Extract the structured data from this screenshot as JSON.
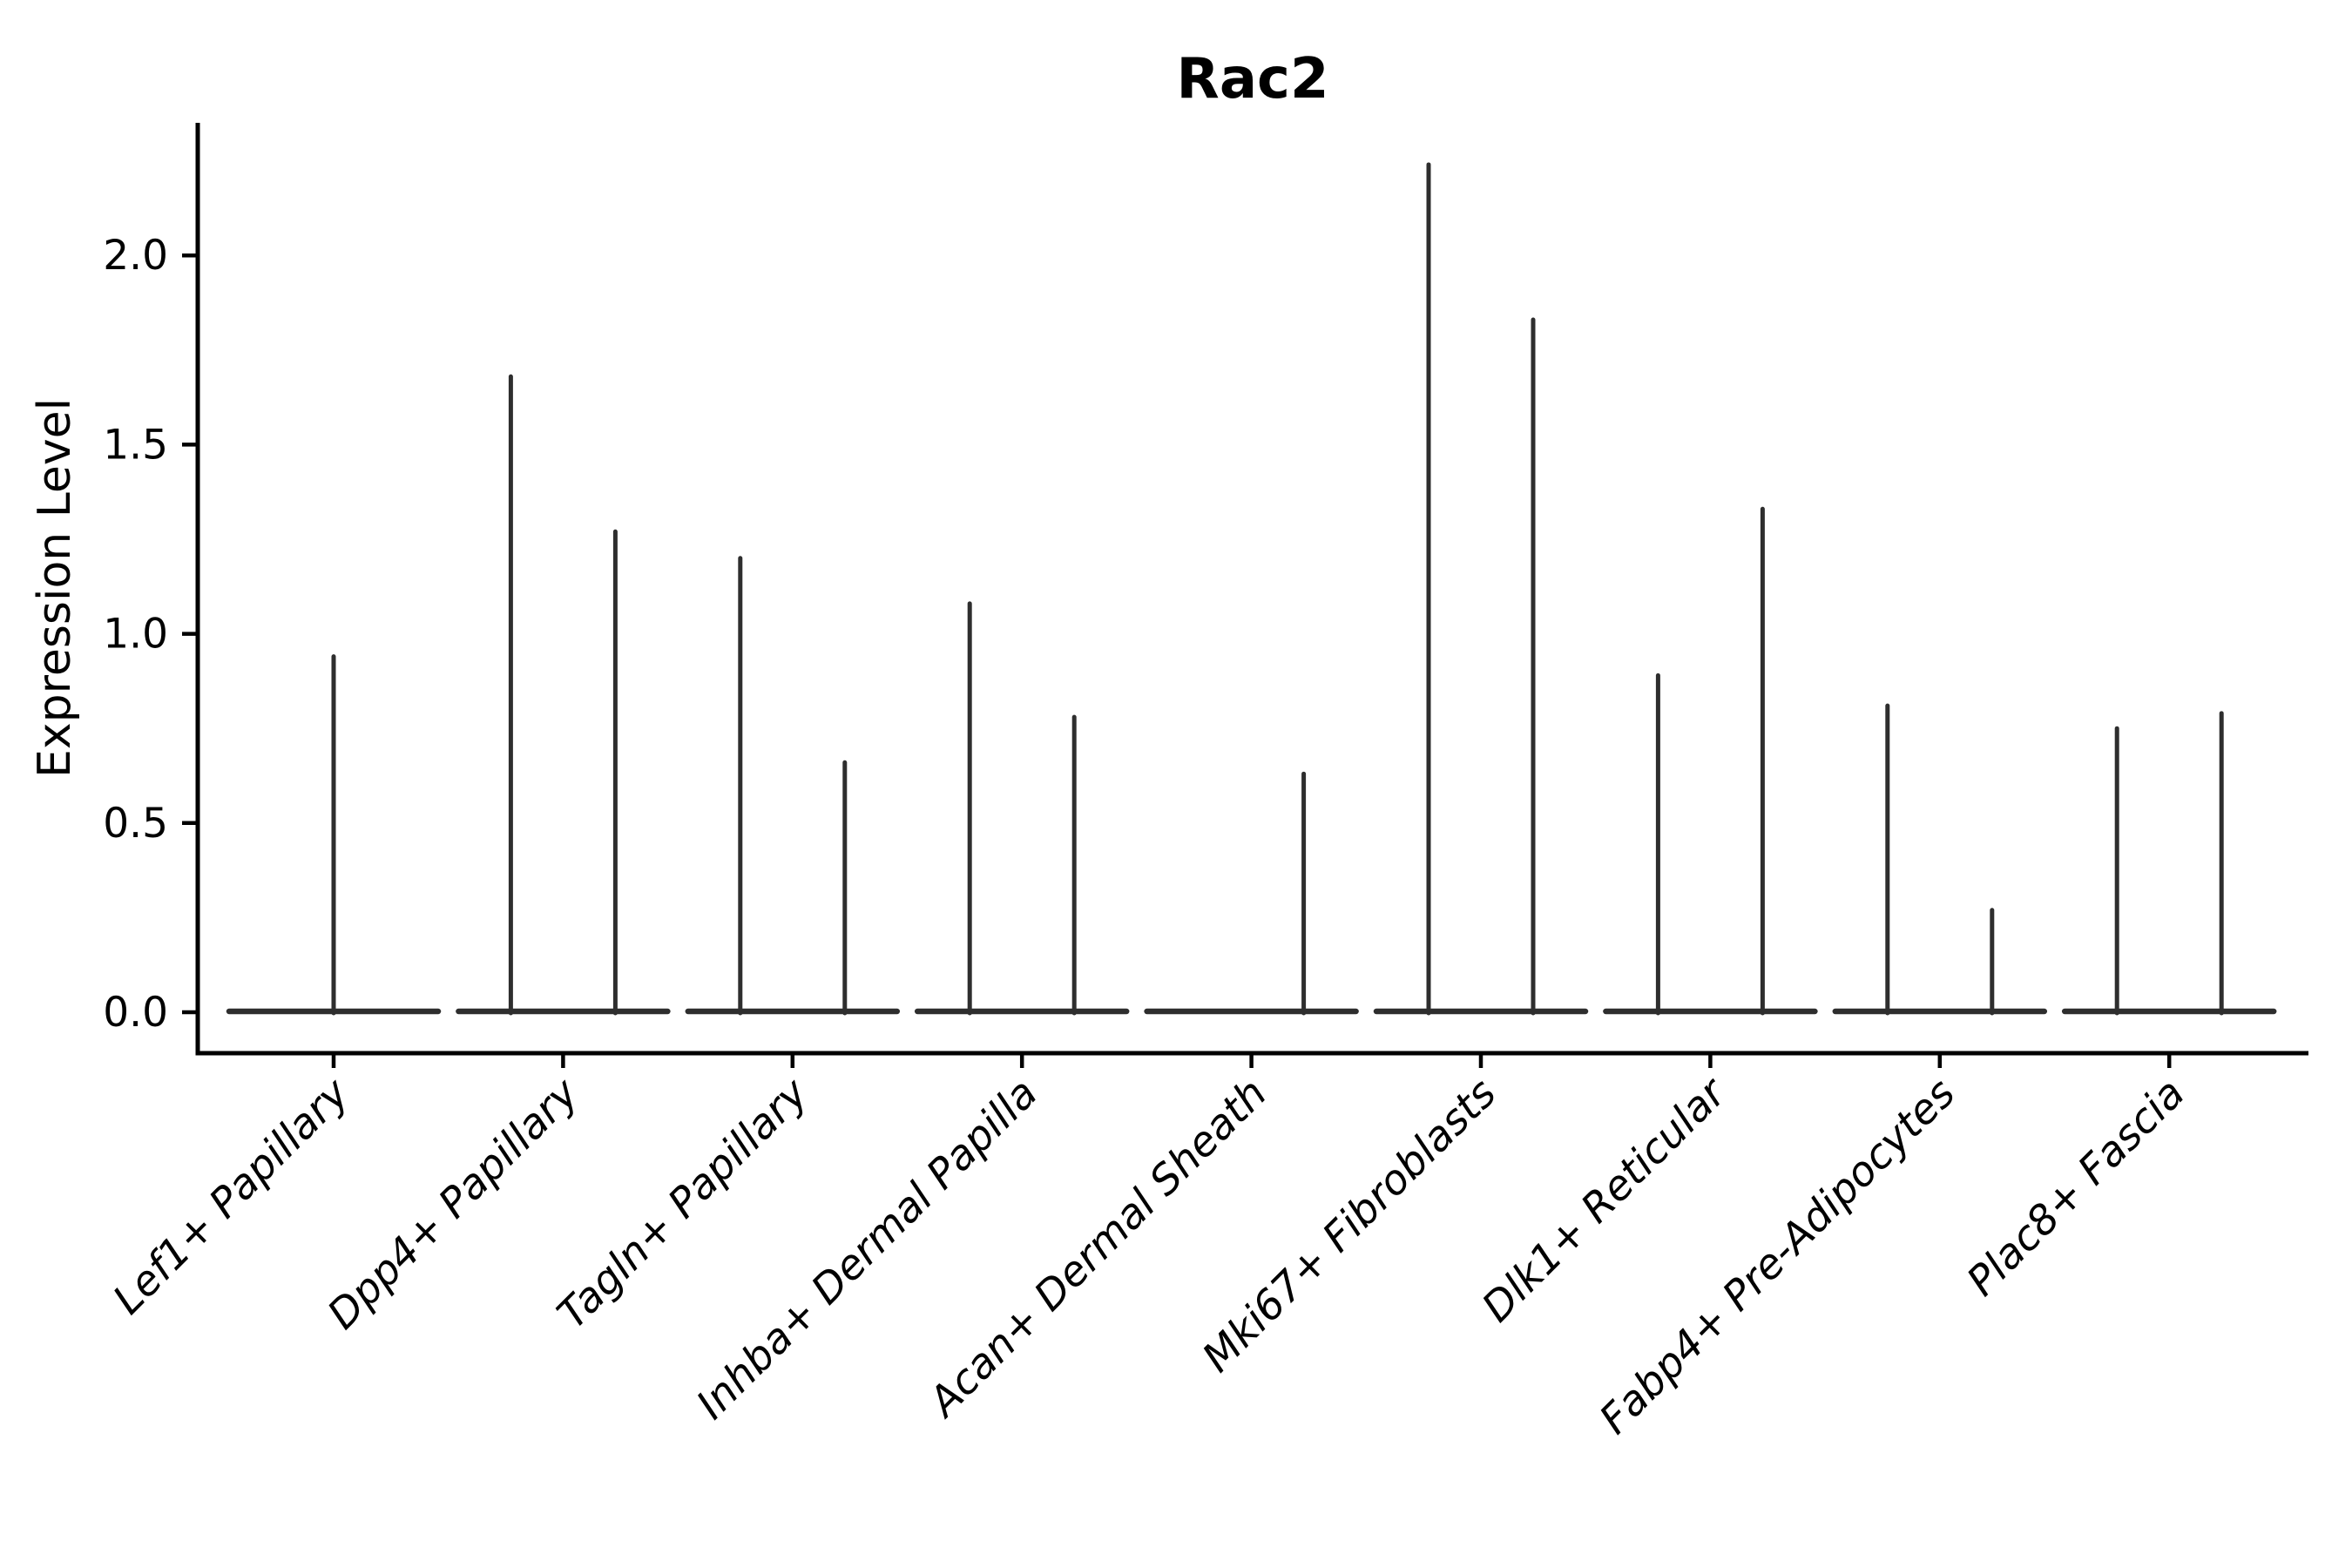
{
  "title": "Rac2",
  "axes": {
    "ylabel": "Expression Level",
    "ytick_labels": [
      "0.0",
      "0.5",
      "1.0",
      "1.5",
      "2.0"
    ]
  },
  "colors": {
    "violin_line": "#2e2e2e",
    "axis_line": "#000000",
    "text": "#000000",
    "background": "#ffffff"
  },
  "chart_data": {
    "type": "violin",
    "title": "Rac2",
    "xlabel": "",
    "ylabel": "Expression Level",
    "ylim": [
      -0.11,
      2.35
    ],
    "yticks": [
      0.0,
      0.5,
      1.0,
      1.5,
      2.0
    ],
    "grid": false,
    "legend": "none",
    "description": "Zero-inflated expression violins: each violin collapses to a horizontal baseline at 0 with a thin vertical spike reaching the maximum expression value. Most categories contain two side-by-side (dodged) violins; spike position 'center' means a single full-width violin, 'left'/'right' are the dodged halves.",
    "categories": [
      "Lef1+ Papillary",
      "Dpp4+ Papillary",
      "Tagln+ Papillary",
      "Inhba+ Dermal Papilla",
      "Acan+ Dermal Sheath",
      "Mki67+ Fibroblasts",
      "Dlk1+ Reticular",
      "Fabp4+ Pre-Adipocytes",
      "Plac8+ Fascia"
    ],
    "violins": [
      {
        "label": "Lef1+ Papillary",
        "baseline_value": 0,
        "spikes": [
          {
            "pos": "center",
            "max": 0.94
          }
        ]
      },
      {
        "label": "Dpp4+ Papillary",
        "baseline_value": 0,
        "spikes": [
          {
            "pos": "left",
            "max": 1.68
          },
          {
            "pos": "right",
            "max": 1.27
          }
        ]
      },
      {
        "label": "Tagln+ Papillary",
        "baseline_value": 0,
        "spikes": [
          {
            "pos": "left",
            "max": 1.2
          },
          {
            "pos": "right",
            "max": 0.66
          }
        ]
      },
      {
        "label": "Inhba+ Dermal Papilla",
        "baseline_value": 0,
        "spikes": [
          {
            "pos": "left",
            "max": 1.08
          },
          {
            "pos": "right",
            "max": 0.78
          }
        ]
      },
      {
        "label": "Acan+ Dermal Sheath",
        "baseline_value": 0,
        "spikes": [
          {
            "pos": "right",
            "max": 0.63
          }
        ]
      },
      {
        "label": "Mki67+ Fibroblasts",
        "baseline_value": 0,
        "spikes": [
          {
            "pos": "left",
            "max": 2.24
          },
          {
            "pos": "right",
            "max": 1.83
          }
        ]
      },
      {
        "label": "Dlk1+ Reticular",
        "baseline_value": 0,
        "spikes": [
          {
            "pos": "left",
            "max": 0.89
          },
          {
            "pos": "right",
            "max": 1.33
          }
        ]
      },
      {
        "label": "Fabp4+ Pre-Adipocytes",
        "baseline_value": 0,
        "spikes": [
          {
            "pos": "left",
            "max": 0.81
          },
          {
            "pos": "right",
            "max": 0.27
          }
        ]
      },
      {
        "label": "Plac8+ Fascia",
        "baseline_value": 0,
        "spikes": [
          {
            "pos": "left",
            "max": 0.75
          },
          {
            "pos": "right",
            "max": 0.79
          }
        ]
      }
    ]
  }
}
